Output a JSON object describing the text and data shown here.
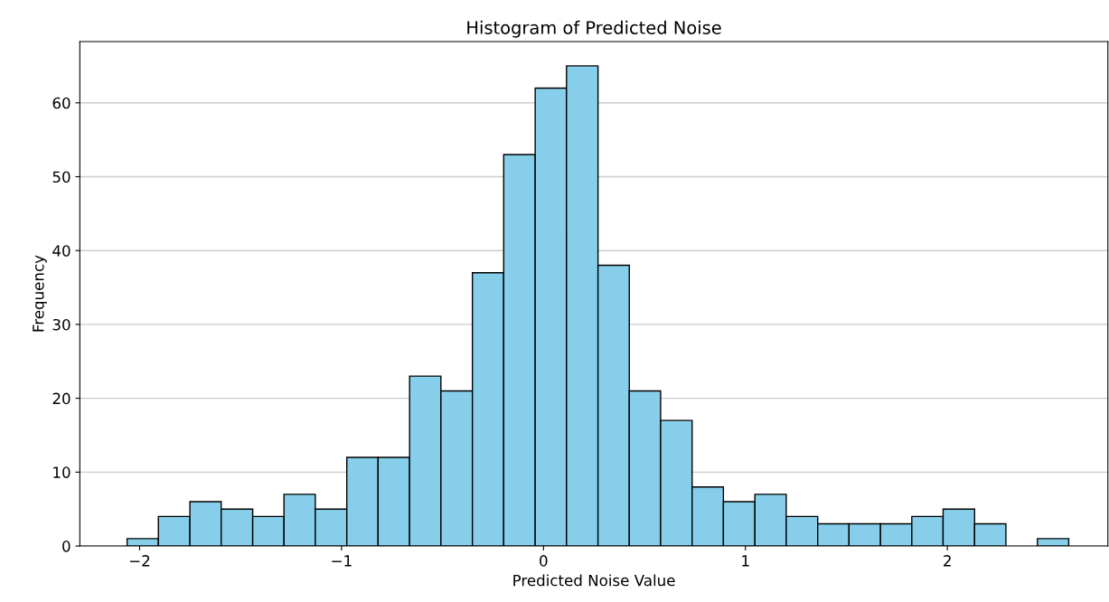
{
  "chart_data": {
    "type": "histogram",
    "title": "Histogram of Predicted Noise",
    "xlabel": "Predicted Noise Value",
    "ylabel": "Frequency",
    "bins": [
      -2.062,
      -1.907,
      -1.751,
      -1.596,
      -1.44,
      -1.285,
      -1.13,
      -0.974,
      -0.819,
      -0.663,
      -0.508,
      -0.352,
      -0.197,
      -0.041,
      0.114,
      0.27,
      0.425,
      0.58,
      0.736,
      0.891,
      1.047,
      1.202,
      1.358,
      1.513,
      1.669,
      1.824,
      1.979,
      2.135,
      2.29,
      2.446,
      2.601
    ],
    "values": [
      1,
      4,
      6,
      5,
      4,
      7,
      5,
      12,
      12,
      23,
      21,
      37,
      53,
      62,
      65,
      38,
      21,
      17,
      8,
      6,
      7,
      4,
      3,
      3,
      3,
      4,
      5,
      3,
      0,
      1
    ],
    "color": "#87ceeb",
    "xlim": [
      -2.296,
      2.795
    ],
    "ylim": [
      0,
      68.3
    ],
    "xticks": [
      {
        "value": -2,
        "label": "−2"
      },
      {
        "value": -1,
        "label": "−1"
      },
      0,
      1,
      2
    ],
    "yticks": [
      0,
      10,
      20,
      30,
      40,
      50,
      60
    ],
    "grid": "y"
  }
}
